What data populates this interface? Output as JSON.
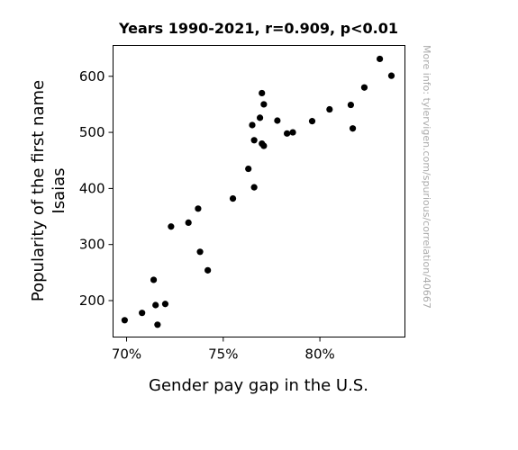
{
  "chart_data": {
    "type": "scatter",
    "title": "Years 1990-2021, r=0.909, p<0.01",
    "xlabel": "Gender pay gap in the U.S.",
    "ylabel_line1": "Popularity of the first name",
    "ylabel_line2": "Isaias",
    "credit": "More info: tylervigen.com/spurious/correlation/40667",
    "xlim": [
      0.693,
      0.844
    ],
    "ylim": [
      135,
      655
    ],
    "x_ticks": [
      {
        "value": 0.7,
        "label": "70%"
      },
      {
        "value": 0.75,
        "label": "75%"
      },
      {
        "value": 0.8,
        "label": "80%"
      }
    ],
    "y_ticks": [
      {
        "value": 200,
        "label": "200"
      },
      {
        "value": 300,
        "label": "300"
      },
      {
        "value": 400,
        "label": "400"
      },
      {
        "value": 500,
        "label": "500"
      },
      {
        "value": 600,
        "label": "600"
      }
    ],
    "marker_color": "#000000",
    "points": [
      {
        "x": 0.699,
        "y": 165
      },
      {
        "x": 0.708,
        "y": 178
      },
      {
        "x": 0.714,
        "y": 237
      },
      {
        "x": 0.715,
        "y": 192
      },
      {
        "x": 0.716,
        "y": 157
      },
      {
        "x": 0.72,
        "y": 194
      },
      {
        "x": 0.723,
        "y": 332
      },
      {
        "x": 0.732,
        "y": 339
      },
      {
        "x": 0.737,
        "y": 364
      },
      {
        "x": 0.738,
        "y": 287
      },
      {
        "x": 0.742,
        "y": 254
      },
      {
        "x": 0.755,
        "y": 382
      },
      {
        "x": 0.763,
        "y": 435
      },
      {
        "x": 0.765,
        "y": 513
      },
      {
        "x": 0.766,
        "y": 486
      },
      {
        "x": 0.766,
        "y": 402
      },
      {
        "x": 0.769,
        "y": 526
      },
      {
        "x": 0.77,
        "y": 480
      },
      {
        "x": 0.77,
        "y": 570
      },
      {
        "x": 0.771,
        "y": 476
      },
      {
        "x": 0.771,
        "y": 550
      },
      {
        "x": 0.778,
        "y": 521
      },
      {
        "x": 0.783,
        "y": 498
      },
      {
        "x": 0.786,
        "y": 500
      },
      {
        "x": 0.796,
        "y": 520
      },
      {
        "x": 0.805,
        "y": 541
      },
      {
        "x": 0.816,
        "y": 549
      },
      {
        "x": 0.817,
        "y": 507
      },
      {
        "x": 0.823,
        "y": 580
      },
      {
        "x": 0.831,
        "y": 631
      },
      {
        "x": 0.837,
        "y": 601
      }
    ]
  }
}
